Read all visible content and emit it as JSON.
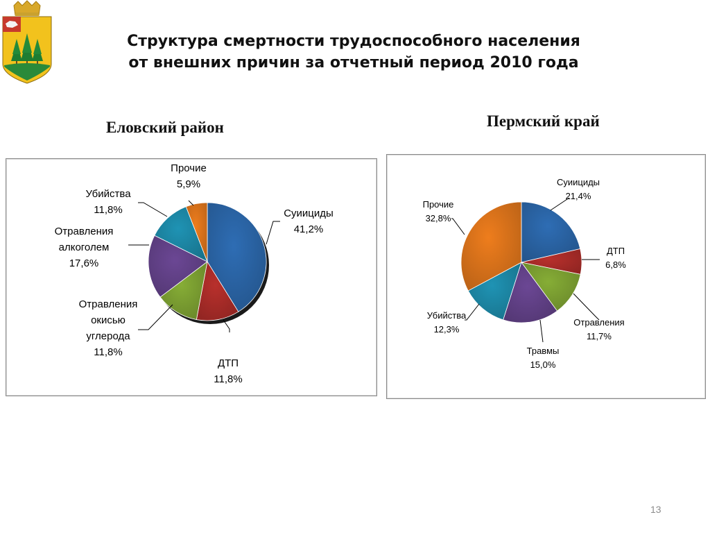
{
  "title": {
    "line1": "Структура смертности трудоспособного населения",
    "line2": "от внешних причин за отчетный период 2010 года"
  },
  "page_number": "13",
  "logo": {
    "name": "coat-of-arms",
    "colors": [
      "#d8a82b",
      "#2a8a3a",
      "#c73a2c",
      "#1f6fb0"
    ]
  },
  "chart_data": [
    {
      "type": "pie",
      "title": "Еловский район",
      "start": "12 o'clock, clockwise",
      "slices": [
        {
          "label": "Суиициды",
          "value": 41.2,
          "text": "41,2%",
          "color": "#2e6db4"
        },
        {
          "label": "ДТП",
          "value": 11.8,
          "text": "11,8%",
          "color": "#b8302c"
        },
        {
          "label": "Отравления окисью углерода",
          "label_lines": [
            "Отравления",
            "окисью",
            "углерода"
          ],
          "value": 11.8,
          "text": "11,8%",
          "color": "#86ad36"
        },
        {
          "label": "Отравления алкоголем",
          "label_lines": [
            "Отравления",
            "алкоголем"
          ],
          "value": 17.6,
          "text": "17,6%",
          "color": "#6b4794"
        },
        {
          "label": "Убийства",
          "value": 11.8,
          "text": "11,8%",
          "color": "#1f93b4"
        },
        {
          "label": "Прочие",
          "value": 5.9,
          "text": "5,9%",
          "color": "#ee7d1d"
        }
      ]
    },
    {
      "type": "pie",
      "title": "Пермский край",
      "start": "12 o'clock, clockwise",
      "slices": [
        {
          "label": "Суиициды",
          "value": 21.4,
          "text": "21,4%",
          "color": "#2e6db4"
        },
        {
          "label": "ДТП",
          "value": 6.8,
          "text": "6,8%",
          "color": "#b8302c"
        },
        {
          "label": "Отравления",
          "value": 11.7,
          "text": "11,7%",
          "color": "#86ad36"
        },
        {
          "label": "Травмы",
          "value": 15.0,
          "text": "15,0%",
          "color": "#6b4794"
        },
        {
          "label": "Убийства",
          "value": 12.3,
          "text": "12,3%",
          "color": "#1f93b4"
        },
        {
          "label": "Прочие",
          "value": 32.8,
          "text": "32,8%",
          "color": "#ee7d1d"
        }
      ]
    }
  ]
}
